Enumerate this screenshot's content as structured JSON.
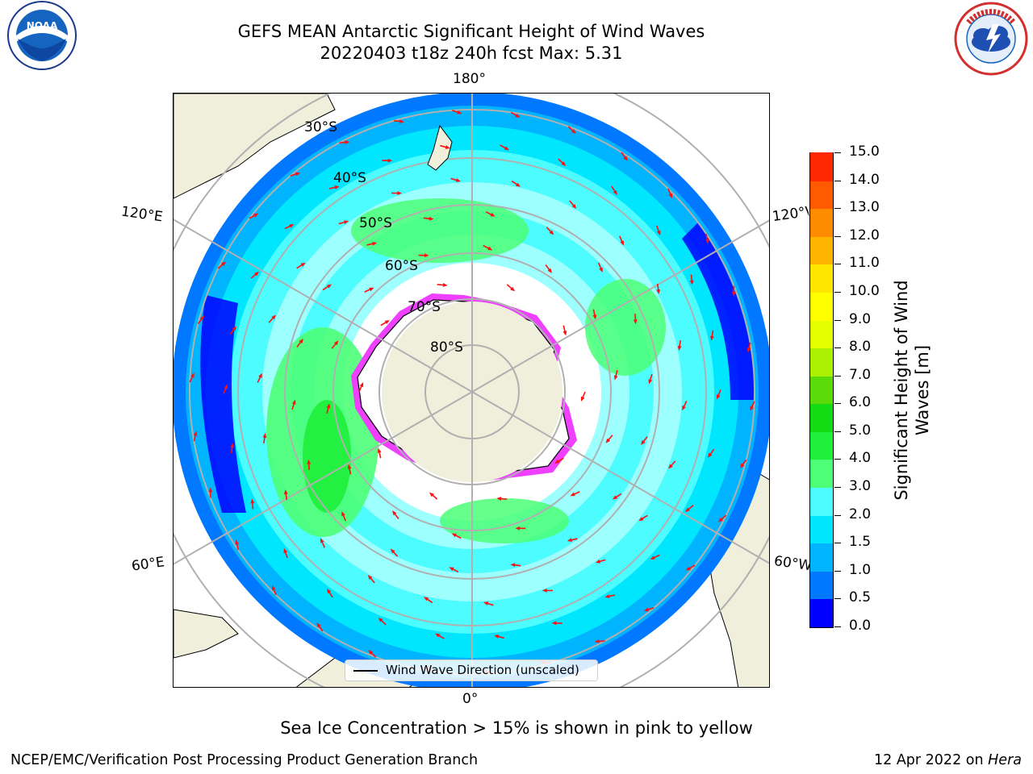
{
  "title_line1": "GEFS MEAN Antarctic Significant Height of Wind Waves",
  "title_line2": "20220403 t18z 240h fcst   Max: 5.31",
  "logos": {
    "left": "NOAA",
    "right": "NATIONAL WEATHER SERVICE"
  },
  "map": {
    "projection": "south-polar-stereographic",
    "lon_labels": {
      "top": "180°",
      "bottom": "0°",
      "left_upper": "120°E",
      "left_lower": "60°E",
      "right_upper": "120°W",
      "right_lower": "60°W"
    },
    "lat_labels": [
      "30°S",
      "40°S",
      "50°S",
      "60°S",
      "70°S",
      "80°S"
    ]
  },
  "colorbar": {
    "label": "Significant Height of Wind Waves [m]",
    "ticks": [
      "0.0",
      "0.5",
      "1.0",
      "1.5",
      "2.0",
      "3.0",
      "4.0",
      "5.0",
      "6.0",
      "7.0",
      "8.0",
      "9.0",
      "10.0",
      "11.0",
      "12.0",
      "13.0",
      "14.0",
      "15.0"
    ],
    "colors": [
      "#0000ff",
      "#0078ff",
      "#00b4ff",
      "#00e6ff",
      "#4cfcff",
      "#9effff",
      "#4cff77",
      "#1ef03a",
      "#14dc14",
      "#5bdc0a",
      "#aaf000",
      "#e6ff00",
      "#ffff00",
      "#ffe600",
      "#ffb400",
      "#ff8c00",
      "#ff5a00",
      "#ff2800",
      "#ff0000"
    ]
  },
  "legend": {
    "label": "Wind Wave Direction (unscaled)"
  },
  "note": "Sea Ice Concentration > 15% is shown in pink to yellow",
  "footer": {
    "left": "NCEP/EMC/Verification Post Processing Product Generation Branch",
    "right_prefix": "12 Apr 2022 on ",
    "right_host": "Hera"
  }
}
